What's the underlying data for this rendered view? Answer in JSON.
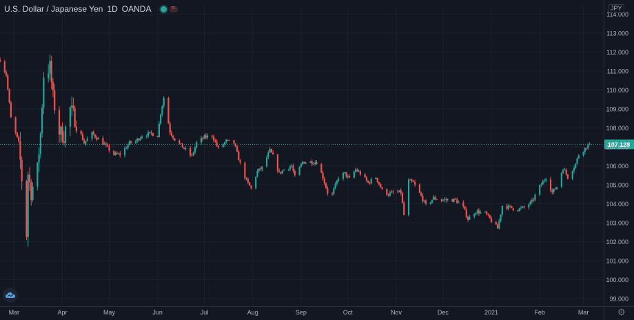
{
  "header": {
    "symbol_name": "U.S. Dollar / Japanese Yen",
    "timeframe": "1D",
    "exchange": "OANDA"
  },
  "price_axis": {
    "currency": "JPY",
    "last_price_label": "107.128"
  },
  "colors": {
    "background": "#131722",
    "up": "#26a69a",
    "down": "#ef5350",
    "grid": "#1e222d",
    "axis_text": "#b2b5be",
    "last_price_line": "#26a69a"
  },
  "icons": {
    "logo": "cloud-logo-icon",
    "settings": "gear-icon"
  },
  "chart_data": {
    "type": "candlestick",
    "y_ticks": [
      "99.000",
      "100.000",
      "101.000",
      "102.000",
      "103.000",
      "104.000",
      "105.000",
      "106.000",
      "107.000",
      "108.000",
      "109.000",
      "110.000",
      "111.000",
      "112.000",
      "113.000",
      "114.000"
    ],
    "ylim": [
      98.6,
      114.45
    ],
    "x_ticks": [
      {
        "label": "Mar",
        "date": "2020-03-01"
      },
      {
        "label": "Apr",
        "date": "2020-04-01"
      },
      {
        "label": "May",
        "date": "2020-05-01"
      },
      {
        "label": "Jun",
        "date": "2020-06-01"
      },
      {
        "label": "Jul",
        "date": "2020-07-01"
      },
      {
        "label": "Aug",
        "date": "2020-08-01"
      },
      {
        "label": "Sep",
        "date": "2020-09-01"
      },
      {
        "label": "Oct",
        "date": "2020-10-01"
      },
      {
        "label": "Nov",
        "date": "2020-11-01"
      },
      {
        "label": "Dec",
        "date": "2020-12-01"
      },
      {
        "label": "2021",
        "date": "2021-01-01"
      },
      {
        "label": "Feb",
        "date": "2021-02-01"
      },
      {
        "label": "Mar",
        "date": "2021-03-01"
      }
    ],
    "xlim": [
      "2020-02-21",
      "2021-03-14"
    ],
    "last_price": 107.128,
    "grid": true,
    "series": [
      {
        "kind": "close_path",
        "points": [
          [
            "2020-02-21",
            111.6
          ],
          [
            "2020-02-25",
            110.8
          ],
          [
            "2020-02-28",
            108.5
          ],
          [
            "2020-03-04",
            107.2
          ],
          [
            "2020-03-06",
            105.3
          ],
          [
            "2020-03-09",
            102.4
          ],
          [
            "2020-03-10",
            105.6
          ],
          [
            "2020-03-12",
            104.6
          ],
          [
            "2020-03-16",
            105.8
          ],
          [
            "2020-03-18",
            107.7
          ],
          [
            "2020-03-20",
            110.8
          ],
          [
            "2020-03-24",
            111.2
          ],
          [
            "2020-03-26",
            109.6
          ],
          [
            "2020-03-30",
            107.8
          ],
          [
            "2020-04-02",
            107.6
          ],
          [
            "2020-04-06",
            109.0
          ],
          [
            "2020-04-09",
            108.5
          ],
          [
            "2020-04-15",
            107.2
          ],
          [
            "2020-04-20",
            107.7
          ],
          [
            "2020-04-27",
            107.2
          ],
          [
            "2020-05-04",
            106.6
          ],
          [
            "2020-05-08",
            106.6
          ],
          [
            "2020-05-14",
            107.2
          ],
          [
            "2020-05-18",
            107.3
          ],
          [
            "2020-05-22",
            107.6
          ],
          [
            "2020-05-28",
            107.7
          ],
          [
            "2020-06-01",
            107.6
          ],
          [
            "2020-06-03",
            108.8
          ],
          [
            "2020-06-05",
            109.6
          ],
          [
            "2020-06-09",
            107.8
          ],
          [
            "2020-06-12",
            107.4
          ],
          [
            "2020-06-17",
            107.0
          ],
          [
            "2020-06-23",
            106.5
          ],
          [
            "2020-06-26",
            107.2
          ],
          [
            "2020-07-01",
            107.5
          ],
          [
            "2020-07-06",
            107.6
          ],
          [
            "2020-07-10",
            106.9
          ],
          [
            "2020-07-15",
            107.3
          ],
          [
            "2020-07-20",
            107.2
          ],
          [
            "2020-07-24",
            106.1
          ],
          [
            "2020-07-28",
            105.2
          ],
          [
            "2020-07-31",
            104.8
          ],
          [
            "2020-08-04",
            105.7
          ],
          [
            "2020-08-07",
            105.9
          ],
          [
            "2020-08-12",
            106.8
          ],
          [
            "2020-08-14",
            106.5
          ],
          [
            "2020-08-18",
            105.6
          ],
          [
            "2020-08-21",
            105.8
          ],
          [
            "2020-08-26",
            106.0
          ],
          [
            "2020-08-28",
            105.4
          ],
          [
            "2020-09-02",
            106.2
          ],
          [
            "2020-09-07",
            106.2
          ],
          [
            "2020-09-11",
            106.2
          ],
          [
            "2020-09-15",
            105.4
          ],
          [
            "2020-09-18",
            104.6
          ],
          [
            "2020-09-21",
            104.5
          ],
          [
            "2020-09-25",
            105.4
          ],
          [
            "2020-09-29",
            105.6
          ],
          [
            "2020-10-02",
            105.3
          ],
          [
            "2020-10-06",
            105.8
          ],
          [
            "2020-10-09",
            105.6
          ],
          [
            "2020-10-14",
            105.1
          ],
          [
            "2020-10-19",
            105.4
          ],
          [
            "2020-10-23",
            104.7
          ],
          [
            "2020-10-27",
            104.5
          ],
          [
            "2020-10-30",
            104.6
          ],
          [
            "2020-11-04",
            104.6
          ],
          [
            "2020-11-06",
            103.4
          ],
          [
            "2020-11-09",
            105.2
          ],
          [
            "2020-11-12",
            105.1
          ],
          [
            "2020-11-17",
            104.4
          ],
          [
            "2020-11-20",
            103.9
          ],
          [
            "2020-11-25",
            104.3
          ],
          [
            "2020-11-30",
            104.2
          ],
          [
            "2020-12-04",
            104.2
          ],
          [
            "2020-12-09",
            104.2
          ],
          [
            "2020-12-14",
            103.8
          ],
          [
            "2020-12-17",
            103.2
          ],
          [
            "2020-12-22",
            103.6
          ],
          [
            "2020-12-28",
            103.5
          ],
          [
            "2020-12-31",
            103.2
          ],
          [
            "2021-01-05",
            102.7
          ],
          [
            "2021-01-08",
            103.9
          ],
          [
            "2021-01-13",
            103.8
          ],
          [
            "2021-01-18",
            103.7
          ],
          [
            "2021-01-22",
            103.8
          ],
          [
            "2021-01-27",
            104.1
          ],
          [
            "2021-02-01",
            104.9
          ],
          [
            "2021-02-05",
            105.4
          ],
          [
            "2021-02-09",
            104.6
          ],
          [
            "2021-02-12",
            104.9
          ],
          [
            "2021-02-16",
            105.9
          ],
          [
            "2021-02-19",
            105.4
          ],
          [
            "2021-02-24",
            106.1
          ],
          [
            "2021-02-26",
            106.6
          ],
          [
            "2021-03-03",
            107.0
          ],
          [
            "2021-03-05",
            107.128
          ]
        ]
      }
    ]
  }
}
